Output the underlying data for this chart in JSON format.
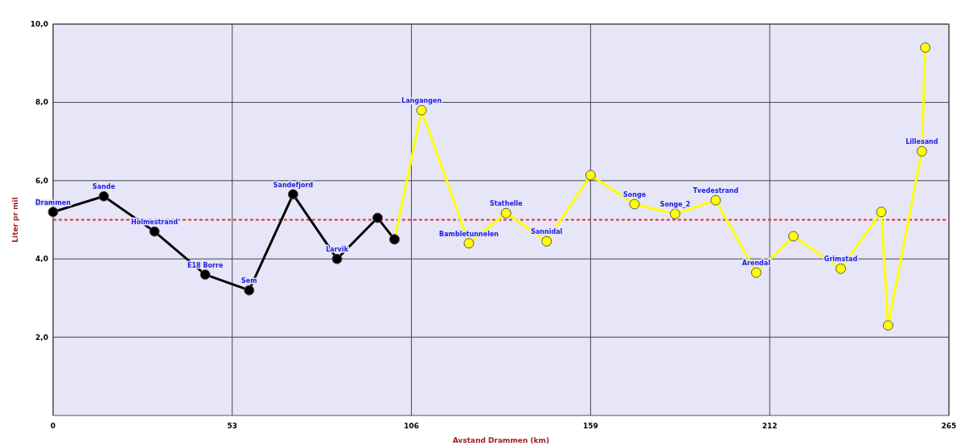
{
  "chart_data": {
    "type": "line",
    "xlabel": "Avstand Drammen (km)",
    "ylabel": "Liter pr mil",
    "xlim": [
      0,
      265
    ],
    "xticks": [
      0,
      53,
      106,
      159,
      212,
      265
    ],
    "ylim": [
      0,
      10
    ],
    "yticks": [
      {
        "value": 2,
        "label": "2,0"
      },
      {
        "value": 4,
        "label": "4,0"
      },
      {
        "value": 6,
        "label": "6,0"
      },
      {
        "value": 8,
        "label": "8,0"
      },
      {
        "value": 10,
        "label": "10,0"
      }
    ],
    "grid": true,
    "marker": "circle",
    "line_style": "solid",
    "series": [
      {
        "color": "#000000",
        "x": [
          0,
          15,
          30,
          45,
          58,
          71,
          84,
          96,
          101
        ],
        "values": [
          5.2,
          5.6,
          4.7,
          3.6,
          3.2,
          5.65,
          4.0,
          5.05,
          4.5
        ]
      },
      {
        "color": "#ffff00",
        "x": [
          101,
          109,
          123,
          134,
          146,
          159,
          172,
          184,
          196,
          208,
          219,
          233,
          245,
          247,
          257,
          258
        ],
        "values": [
          4.5,
          7.8,
          4.4,
          5.17,
          4.45,
          6.14,
          5.4,
          5.15,
          5.5,
          3.65,
          4.58,
          3.75,
          5.2,
          2.3,
          6.75,
          9.4
        ]
      }
    ],
    "ref_lines": [
      {
        "axis": "y",
        "value": 5.0,
        "color": "#e03030",
        "line_style": "dashed"
      }
    ],
    "annotations": [
      {
        "text": "Drammen",
        "x": 0,
        "y": 5.2
      },
      {
        "text": "Sande",
        "x": 15,
        "y": 5.6
      },
      {
        "text": "Holmestrand",
        "x": 30,
        "y": 4.7
      },
      {
        "text": "E18 Borre",
        "x": 45,
        "y": 3.6
      },
      {
        "text": "Sem",
        "x": 58,
        "y": 3.2
      },
      {
        "text": "Sandefjord",
        "x": 71,
        "y": 5.65
      },
      {
        "text": "Larvik",
        "x": 84,
        "y": 4.0
      },
      {
        "text": "Langangen",
        "x": 109,
        "y": 7.8
      },
      {
        "text": "Bambletunnelen",
        "x": 123,
        "y": 4.4
      },
      {
        "text": "Stathelle",
        "x": 134,
        "y": 5.17
      },
      {
        "text": "Sannidal",
        "x": 146,
        "y": 4.45
      },
      {
        "text": "Songe",
        "x": 172,
        "y": 5.4
      },
      {
        "text": "Songe_2",
        "x": 184,
        "y": 5.15
      },
      {
        "text": "Tvedestrand",
        "x": 196,
        "y": 5.5
      },
      {
        "text": "Arendal",
        "x": 208,
        "y": 3.65
      },
      {
        "text": "Grimstad",
        "x": 233,
        "y": 3.75
      },
      {
        "text": "Lillesand",
        "x": 257,
        "y": 6.75
      }
    ]
  }
}
